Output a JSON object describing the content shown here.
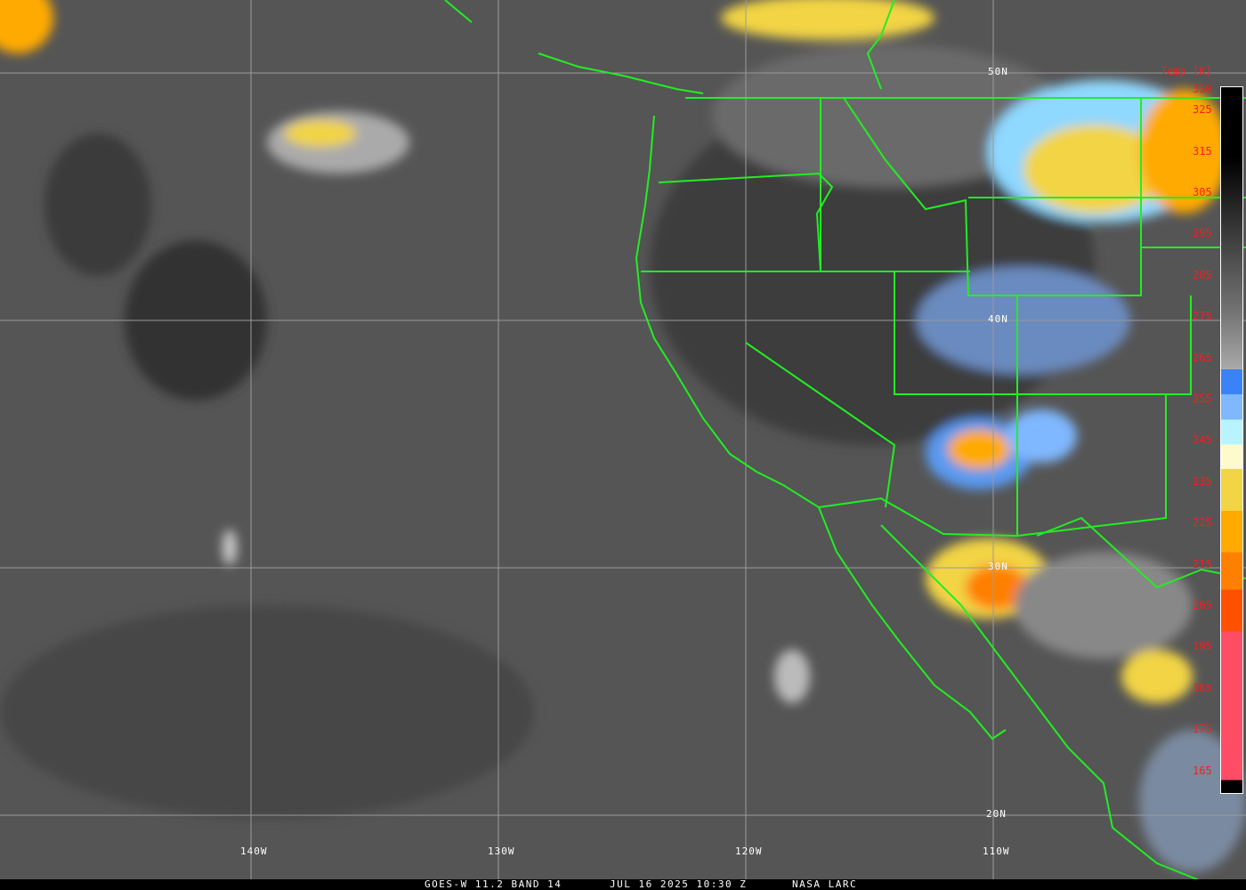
{
  "caption": {
    "satellite": "GOES-W 11.2 BAND 14",
    "datetime": "JUL 16 2025 10:30 Z",
    "credit": "NASA LARC"
  },
  "latitude_labels": [
    "50N",
    "40N",
    "30N",
    "20N"
  ],
  "longitude_labels": [
    "140W",
    "130W",
    "120W",
    "110W"
  ],
  "colorbar": {
    "title": "Temp [K]",
    "ticks": [
      "330",
      "325",
      "315",
      "305",
      "295",
      "285",
      "275",
      "265",
      "255",
      "245",
      "235",
      "225",
      "215",
      "205",
      "195",
      "185",
      "175",
      "165"
    ],
    "colors": {
      "cold_blue": "#3b82f6",
      "light_blue": "#7fb8ff",
      "cyan": "#b8f4ff",
      "cream": "#fffacd",
      "yellow": "#f2d444",
      "amber": "#ffaa00",
      "orange": "#ff8000",
      "dark_orange": "#ff5000",
      "pink_red": "#ff4d66"
    }
  },
  "overlay_colors": {
    "borders": "#22ee22",
    "grid": "#9a9a9a"
  }
}
